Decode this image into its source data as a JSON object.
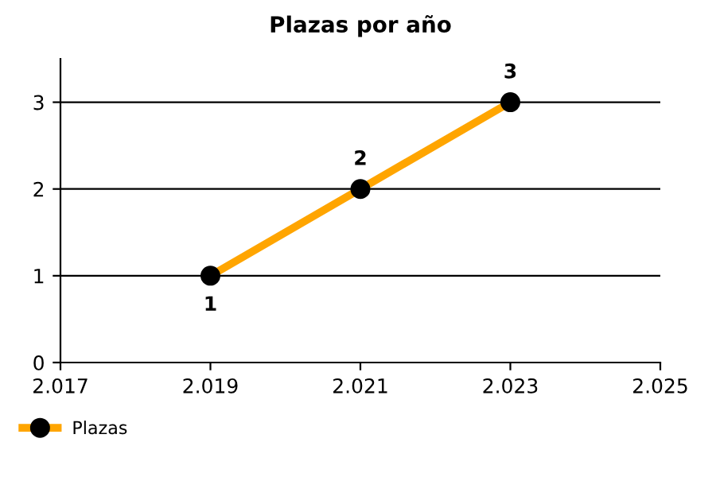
{
  "chart_data": {
    "type": "line",
    "title": "Plazas por año",
    "x": [
      2019,
      2021,
      2023
    ],
    "series": [
      {
        "name": "Plazas",
        "color": "#ffa500",
        "values": [
          1,
          2,
          3
        ]
      }
    ],
    "xlim": [
      2017,
      2025
    ],
    "xticks": [
      {
        "value": 2017,
        "label": "2.017"
      },
      {
        "value": 2019,
        "label": "2.019"
      },
      {
        "value": 2021,
        "label": "2.021"
      },
      {
        "value": 2023,
        "label": "2.023"
      },
      {
        "value": 2025,
        "label": "2.025"
      }
    ],
    "ylim": [
      0,
      3.5
    ],
    "yticks": [
      0,
      1,
      2,
      3
    ],
    "grid": "y",
    "legend": "bottom left",
    "marker": "circle",
    "line_style": "solid",
    "data_labels": true
  }
}
